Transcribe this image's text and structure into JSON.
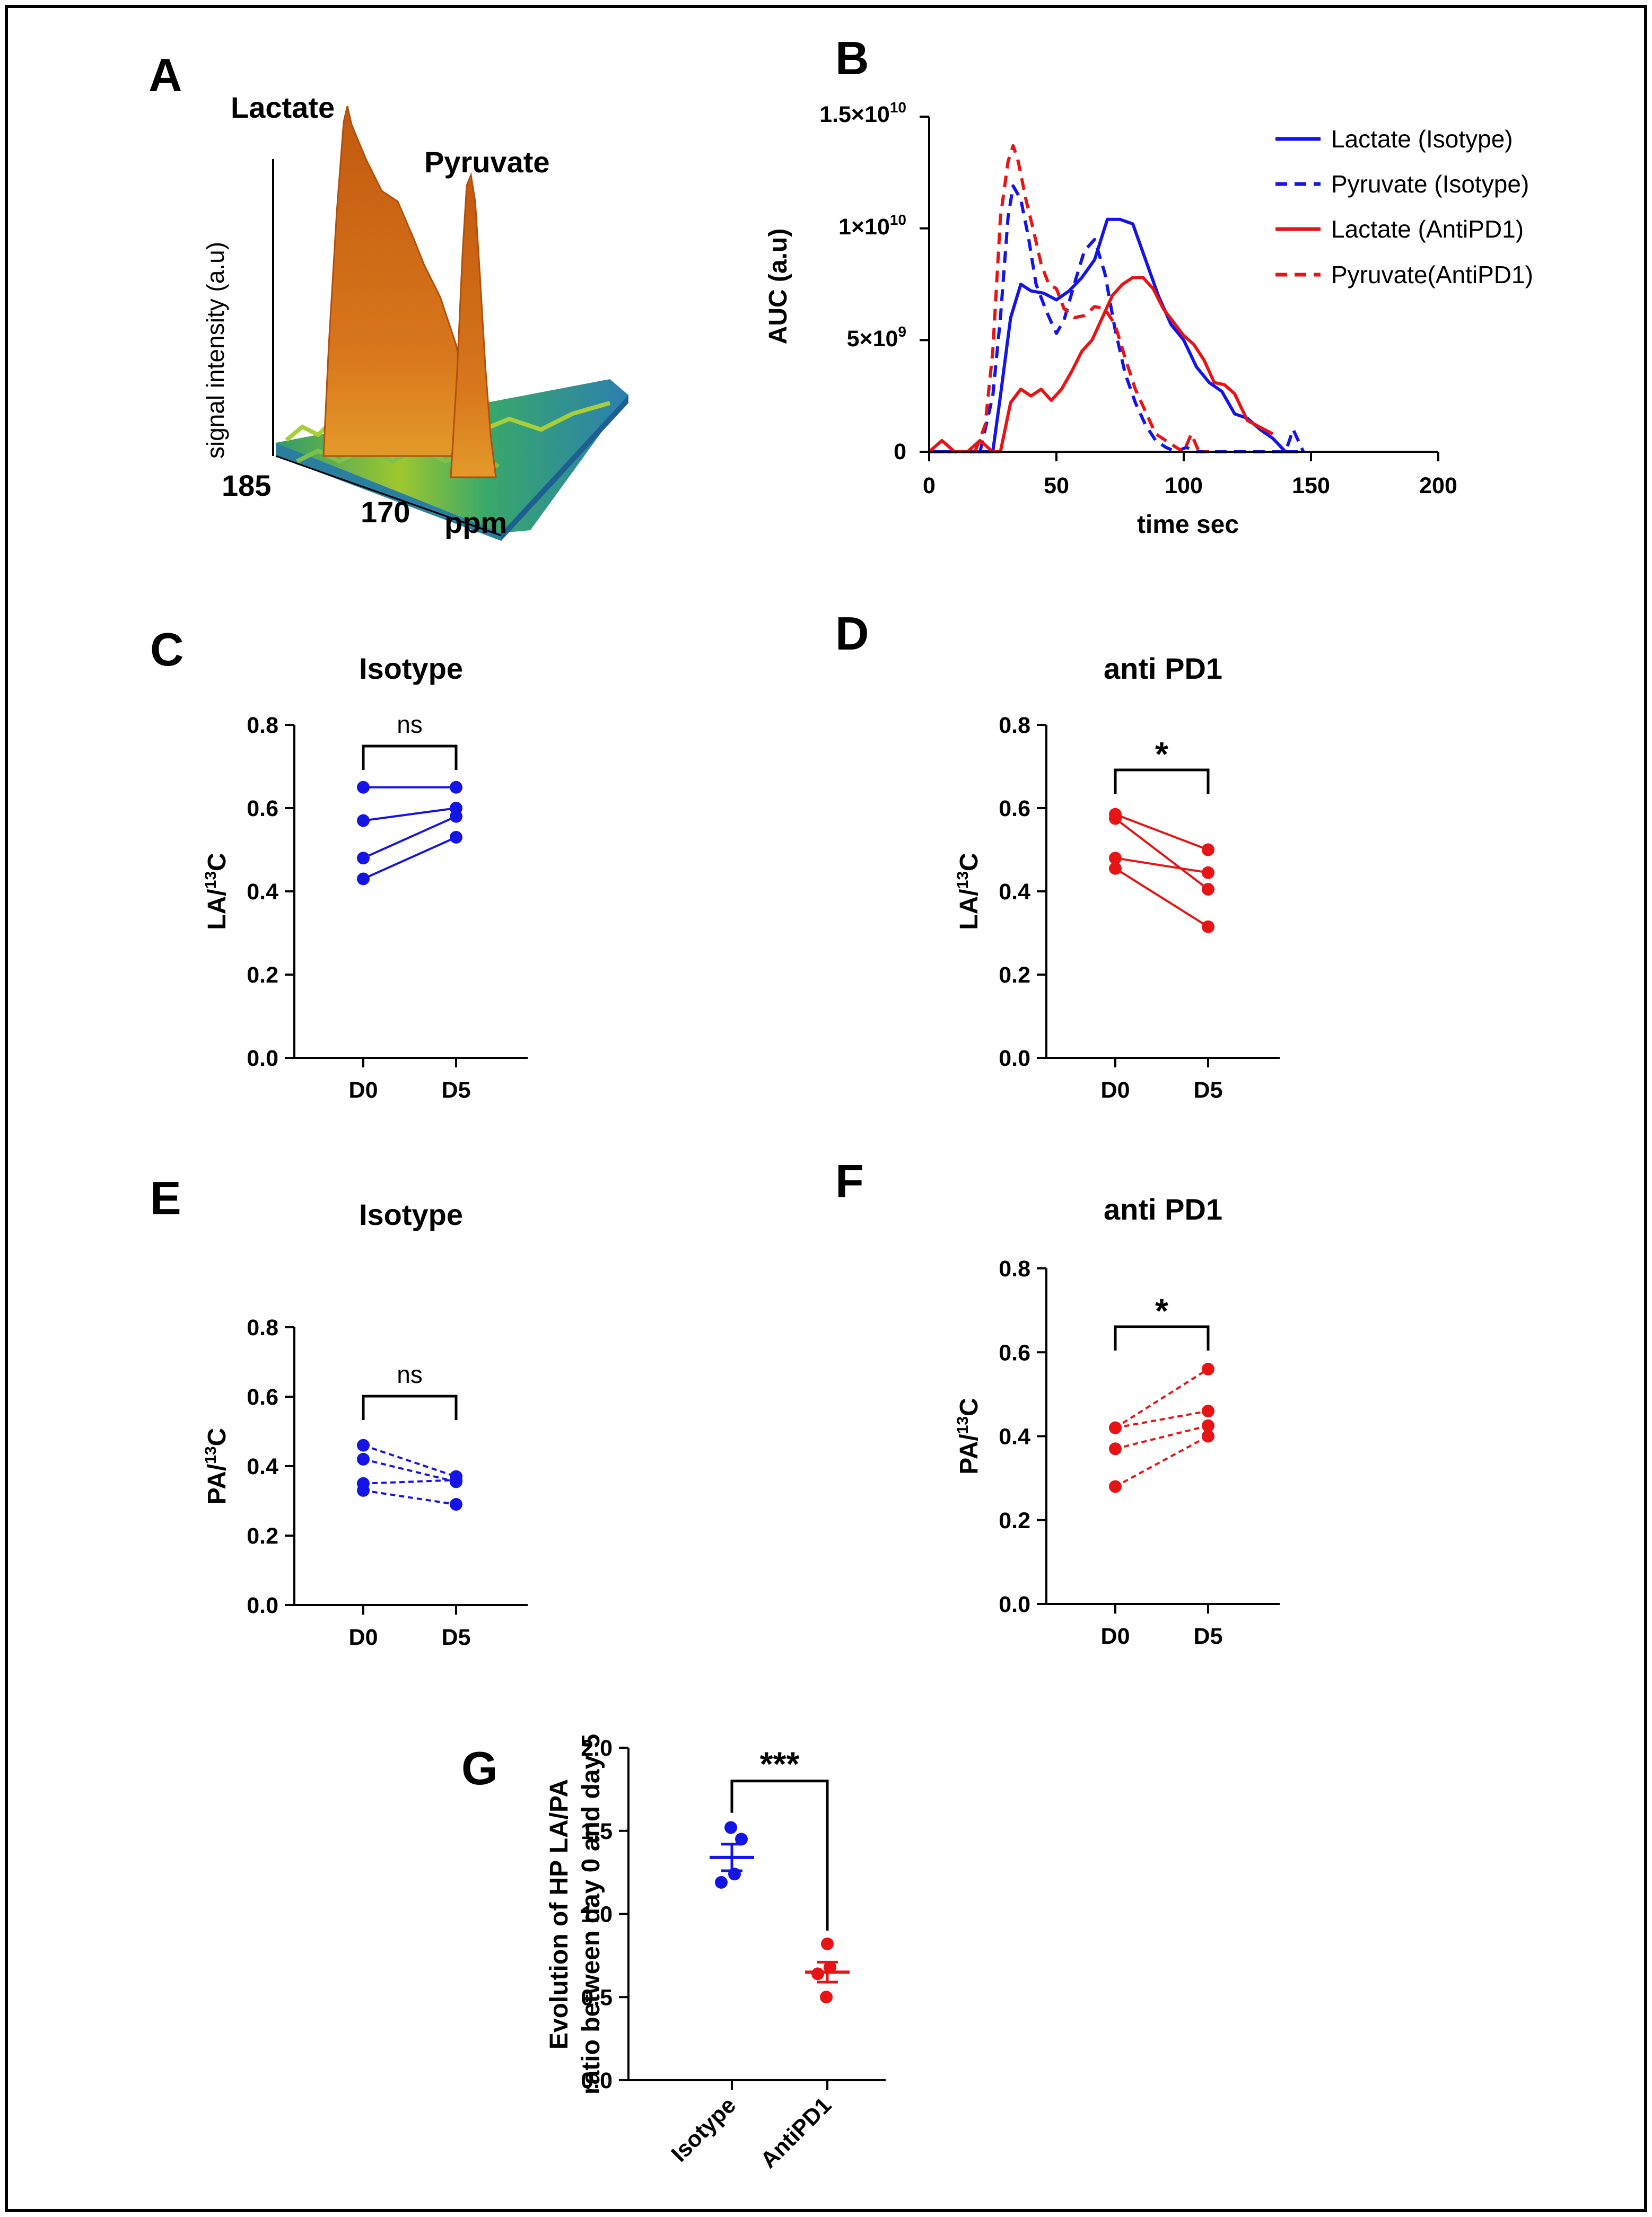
{
  "colors": {
    "isotype": "#1414e6",
    "antipd1": "#e61414",
    "frame": "#000000"
  },
  "panel_letters": [
    "A",
    "B",
    "C",
    "D",
    "E",
    "F",
    "G"
  ],
  "chart_data": [
    {
      "id": "A",
      "type": "surface",
      "peak_labels": [
        "Lactate",
        "Pyruvate"
      ],
      "ylabel": "signal intensity (a.u)",
      "x_ticks": [
        "185",
        "170"
      ],
      "xlabel": "ppm"
    },
    {
      "id": "B",
      "type": "line",
      "xlabel": "time sec",
      "ylabel": "AUC (a.u)",
      "xlim": [
        0,
        200
      ],
      "ylim": [
        0,
        15000000000
      ],
      "x_ticks": [
        "0",
        "50",
        "100",
        "150",
        "200"
      ],
      "y_ticks": [
        "0",
        "5×10",
        "1×10",
        "1.5×10"
      ],
      "y_tick_exp": [
        "",
        "9",
        "10",
        "10"
      ],
      "y_tick_values": [
        0,
        5000000000,
        10000000000,
        15000000000
      ],
      "legend": "top-right",
      "series": [
        {
          "name": "Lactate (Isotype)",
          "color": "isotype",
          "dash": false,
          "x": [
            0,
            25,
            28,
            32,
            36,
            40,
            45,
            50,
            55,
            60,
            65,
            70,
            75,
            80,
            85,
            90,
            95,
            100,
            105,
            110,
            115,
            120,
            125,
            130,
            135,
            140,
            145
          ],
          "y": [
            0,
            0,
            2500000000,
            6000000000,
            7500000000,
            7200000000,
            7100000000,
            6800000000,
            7200000000,
            7800000000,
            8600000000,
            10400000000,
            10400000000,
            10200000000,
            8600000000,
            7000000000,
            5700000000,
            5000000000,
            3800000000,
            3100000000,
            2700000000,
            1700000000,
            1500000000,
            1000000000,
            600000000,
            0,
            0
          ]
        },
        {
          "name": "Pyruvate (Isotype)",
          "color": "isotype",
          "dash": true,
          "x": [
            20,
            25,
            28,
            31,
            33,
            36,
            39,
            42,
            46,
            50,
            53,
            57,
            61,
            65,
            69,
            73,
            77,
            81,
            85,
            89,
            93,
            97,
            101,
            105,
            110,
            140,
            143,
            147
          ],
          "y": [
            0,
            2500000000,
            6000000000,
            10500000000,
            11900000000,
            11300000000,
            9600000000,
            7500000000,
            6300000000,
            5300000000,
            5900000000,
            7500000000,
            9000000000,
            9500000000,
            8000000000,
            5500000000,
            3500000000,
            2200000000,
            1200000000,
            500000000,
            200000000,
            0,
            200000000,
            0,
            0,
            0,
            1000000000,
            0
          ]
        },
        {
          "name": "Lactate (AntiPD1)",
          "color": "antipd1",
          "dash": false,
          "x": [
            0,
            5,
            10,
            15,
            20,
            25,
            28,
            32,
            36,
            40,
            44,
            48,
            52,
            56,
            60,
            64,
            68,
            72,
            76,
            80,
            84,
            88,
            92,
            96,
            100,
            104,
            108,
            112,
            116,
            120,
            125,
            130,
            135
          ],
          "y": [
            0,
            500000000,
            0,
            0,
            500000000,
            0,
            0,
            2200000000,
            2800000000,
            2500000000,
            2800000000,
            2300000000,
            2800000000,
            3600000000,
            4500000000,
            5000000000,
            6000000000,
            7000000000,
            7500000000,
            7800000000,
            7800000000,
            7300000000,
            6400000000,
            5800000000,
            5200000000,
            4800000000,
            4100000000,
            3100000000,
            3000000000,
            2600000000,
            1400000000,
            1100000000,
            800000000
          ]
        },
        {
          "name": "Pyruvate(AntiPD1)",
          "color": "antipd1",
          "dash": true,
          "x": [
            18,
            22,
            25,
            28,
            31,
            33,
            35,
            38,
            41,
            44,
            47,
            50,
            53,
            57,
            61,
            65,
            69,
            73,
            77,
            81,
            85,
            89,
            93,
            97,
            100,
            103,
            106,
            110
          ],
          "y": [
            0,
            1200000000,
            4500000000,
            10500000000,
            13000000000,
            13700000000,
            13000000000,
            11300000000,
            9900000000,
            8400000000,
            7500000000,
            7300000000,
            6400000000,
            6000000000,
            6100000000,
            6500000000,
            6400000000,
            5700000000,
            4200000000,
            2800000000,
            1800000000,
            800000000,
            500000000,
            200000000,
            0,
            800000000,
            0,
            0
          ]
        }
      ]
    },
    {
      "id": "C",
      "type": "paired",
      "title": "Isotype",
      "ylabel": "LA/",
      "ylabel_sup": "13",
      "ylabel_tail": "C",
      "categories": [
        "D0",
        "D5"
      ],
      "ylim": [
        0,
        0.8
      ],
      "y_ticks": [
        "0.0",
        "0.2",
        "0.4",
        "0.6",
        "0.8"
      ],
      "y_tick_values": [
        0,
        0.2,
        0.4,
        0.6,
        0.8
      ],
      "color": "isotype",
      "dash": false,
      "significance": "ns",
      "pairs": [
        [
          0.65,
          0.65
        ],
        [
          0.57,
          0.6
        ],
        [
          0.48,
          0.58
        ],
        [
          0.43,
          0.53
        ]
      ]
    },
    {
      "id": "D",
      "type": "paired",
      "title": "anti PD1",
      "ylabel": "LA/",
      "ylabel_sup": "13",
      "ylabel_tail": "C",
      "categories": [
        "D0",
        "D5"
      ],
      "ylim": [
        0,
        0.8
      ],
      "y_ticks": [
        "0.0",
        "0.2",
        "0.4",
        "0.6",
        "0.8"
      ],
      "y_tick_values": [
        0,
        0.2,
        0.4,
        0.6,
        0.8
      ],
      "color": "antipd1",
      "dash": false,
      "significance": "*",
      "pairs": [
        [
          0.585,
          0.5
        ],
        [
          0.575,
          0.405
        ],
        [
          0.48,
          0.445
        ],
        [
          0.455,
          0.315
        ]
      ]
    },
    {
      "id": "E",
      "type": "paired",
      "title": "Isotype",
      "ylabel": "PA/",
      "ylabel_sup": "13",
      "ylabel_tail": "C",
      "categories": [
        "D0",
        "D5"
      ],
      "ylim": [
        0,
        0.8
      ],
      "y_ticks": [
        "0.0",
        "0.2",
        "0.4",
        "0.6",
        "0.8"
      ],
      "y_tick_values": [
        0,
        0.2,
        0.4,
        0.6,
        0.8
      ],
      "color": "isotype",
      "dash": true,
      "significance": "ns",
      "pairs": [
        [
          0.46,
          0.37
        ],
        [
          0.42,
          0.355
        ],
        [
          0.35,
          0.36
        ],
        [
          0.33,
          0.29
        ]
      ]
    },
    {
      "id": "F",
      "type": "paired",
      "title": "anti PD1",
      "ylabel": "PA/",
      "ylabel_sup": "13",
      "ylabel_tail": "C",
      "categories": [
        "D0",
        "D5"
      ],
      "ylim": [
        0,
        0.8
      ],
      "y_ticks": [
        "0.0",
        "0.2",
        "0.4",
        "0.6",
        "0.8"
      ],
      "y_tick_values": [
        0,
        0.2,
        0.4,
        0.6,
        0.8
      ],
      "color": "antipd1",
      "dash": true,
      "significance": "*",
      "pairs": [
        [
          0.42,
          0.56
        ],
        [
          0.42,
          0.46
        ],
        [
          0.37,
          0.425
        ],
        [
          0.28,
          0.4
        ]
      ]
    },
    {
      "id": "G",
      "type": "scatter",
      "ylabel": "Evolution of HP LA/PA",
      "ylabel2": "ratio between day 0 and day 5",
      "categories": [
        "Isotype",
        "AntiPD1"
      ],
      "ylim": [
        0,
        2.0
      ],
      "y_ticks": [
        "0.0",
        "0.5",
        "1.0",
        "1.5",
        "2.0"
      ],
      "y_tick_values": [
        0,
        0.5,
        1.0,
        1.5,
        2.0
      ],
      "significance": "***",
      "groups": [
        {
          "name": "Isotype",
          "color": "isotype",
          "values": [
            1.52,
            1.45,
            1.24,
            1.19
          ],
          "mean": 1.34,
          "sem": 0.08
        },
        {
          "name": "AntiPD1",
          "color": "antipd1",
          "values": [
            0.82,
            0.68,
            0.64,
            0.5
          ],
          "mean": 0.65,
          "sem": 0.06
        }
      ]
    }
  ]
}
